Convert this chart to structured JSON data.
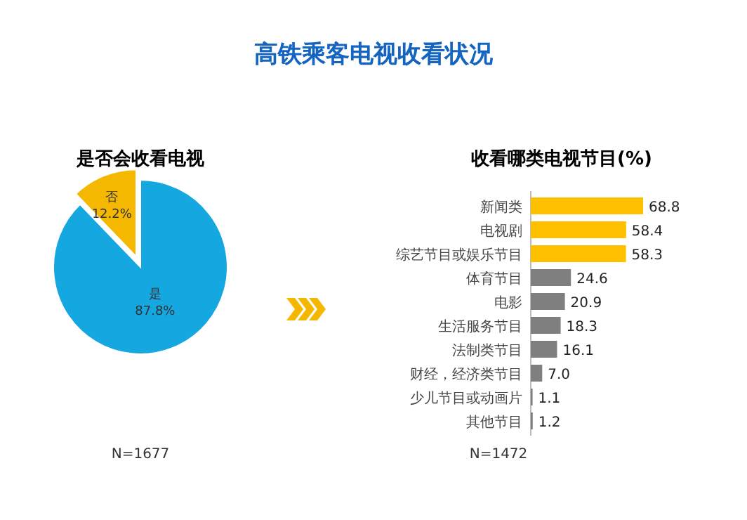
{
  "chart_data": [
    {
      "type": "pie",
      "title": "高铁乘客电视收看状况",
      "subtitle": "是否会收看电视",
      "categories": [
        "否",
        "是"
      ],
      "values": [
        12.2,
        87.8
      ],
      "colors": [
        "#f5b800",
        "#14a7e0"
      ],
      "value_labels": [
        "12.2%",
        "87.8%"
      ],
      "annotations": [
        "N=1677"
      ]
    },
    {
      "type": "bar",
      "orientation": "horizontal",
      "title": "收看哪类电视节目(%)",
      "categories": [
        "新闻类",
        "电视剧",
        "综艺节目或娱乐节目",
        "体育节目",
        "电影",
        "生活服务节目",
        "法制类节目",
        "财经，经济类节目",
        "少儿节目或动画片",
        "其他节目"
      ],
      "values": [
        68.8,
        58.4,
        58.3,
        24.6,
        20.9,
        18.3,
        16.1,
        7.0,
        1.1,
        1.2
      ],
      "colors": [
        "#ffc000",
        "#ffc000",
        "#ffc000",
        "#7f7f7f",
        "#7f7f7f",
        "#7f7f7f",
        "#7f7f7f",
        "#7f7f7f",
        "#7f7f7f",
        "#7f7f7f"
      ],
      "value_labels": [
        "68.8",
        "58.4",
        "58.3",
        "24.6",
        "20.9",
        "18.3",
        "16.1",
        "7.0",
        "1.1",
        "1.2"
      ],
      "annotations": [
        "N=1472"
      ]
    }
  ]
}
